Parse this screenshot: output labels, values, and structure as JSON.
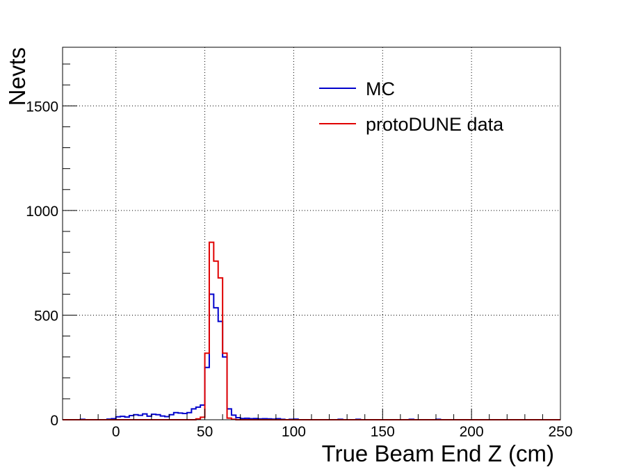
{
  "chart_data": {
    "type": "histogram",
    "title": "",
    "xlabel": "True Beam End Z (cm)",
    "ylabel": "Nevts",
    "xlim": [
      -30,
      250
    ],
    "ylim": [
      0,
      1780
    ],
    "bin_width": 2.5,
    "grid": true,
    "legend_position": "top-right",
    "x_ticks": [
      0,
      50,
      100,
      150,
      200,
      250
    ],
    "y_ticks": [
      0,
      500,
      1000,
      1500
    ],
    "series": [
      {
        "name": "MC",
        "color": "#0000cc",
        "bins": [
          [
            -30,
            0
          ],
          [
            -20,
            2
          ],
          [
            -17.5,
            0
          ],
          [
            -5,
            3
          ],
          [
            -2.5,
            5
          ],
          [
            0,
            14
          ],
          [
            2.5,
            16
          ],
          [
            5,
            13
          ],
          [
            7.5,
            20
          ],
          [
            10,
            24
          ],
          [
            12.5,
            21
          ],
          [
            15,
            28
          ],
          [
            17.5,
            17
          ],
          [
            20,
            26
          ],
          [
            22.5,
            24
          ],
          [
            25,
            18
          ],
          [
            27.5,
            15
          ],
          [
            30,
            24
          ],
          [
            32.5,
            34
          ],
          [
            35,
            32
          ],
          [
            37.5,
            30
          ],
          [
            40,
            34
          ],
          [
            42.5,
            52
          ],
          [
            45,
            60
          ],
          [
            47.5,
            70
          ],
          [
            50,
            250
          ],
          [
            52.5,
            600
          ],
          [
            55,
            535
          ],
          [
            57.5,
            470
          ],
          [
            60,
            300
          ],
          [
            62.5,
            52
          ],
          [
            65,
            22
          ],
          [
            67.5,
            10
          ],
          [
            70,
            6
          ],
          [
            72.5,
            7
          ],
          [
            75,
            5
          ],
          [
            77.5,
            6
          ],
          [
            80,
            4
          ],
          [
            82.5,
            5
          ],
          [
            85,
            4
          ],
          [
            87.5,
            3
          ],
          [
            90,
            5
          ],
          [
            92.5,
            2
          ],
          [
            95,
            0
          ],
          [
            97.5,
            2
          ],
          [
            100,
            3
          ],
          [
            102.5,
            0
          ],
          [
            125,
            2
          ],
          [
            127.5,
            0
          ],
          [
            135,
            2
          ],
          [
            137.5,
            0
          ],
          [
            165,
            2
          ],
          [
            167.5,
            0
          ],
          [
            180,
            2
          ],
          [
            182.5,
            0
          ],
          [
            247.5,
            0
          ]
        ]
      },
      {
        "name": "protoDUNE data",
        "color": "#e00000",
        "bins": [
          [
            -30,
            0
          ],
          [
            45,
            4
          ],
          [
            47.5,
            12
          ],
          [
            50,
            318
          ],
          [
            52.5,
            848
          ],
          [
            55,
            758
          ],
          [
            57.5,
            678
          ],
          [
            60,
            318
          ],
          [
            62.5,
            8
          ],
          [
            65,
            2
          ],
          [
            67.5,
            0
          ],
          [
            247.5,
            0
          ]
        ]
      }
    ]
  }
}
